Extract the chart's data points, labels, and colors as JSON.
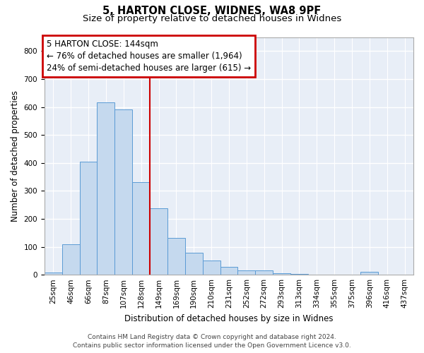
{
  "title1": "5, HARTON CLOSE, WIDNES, WA8 9PF",
  "title2": "Size of property relative to detached houses in Widnes",
  "xlabel": "Distribution of detached houses by size in Widnes",
  "ylabel": "Number of detached properties",
  "categories": [
    "25sqm",
    "46sqm",
    "66sqm",
    "87sqm",
    "107sqm",
    "128sqm",
    "149sqm",
    "169sqm",
    "190sqm",
    "210sqm",
    "231sqm",
    "252sqm",
    "272sqm",
    "293sqm",
    "313sqm",
    "334sqm",
    "355sqm",
    "375sqm",
    "396sqm",
    "416sqm",
    "437sqm"
  ],
  "values": [
    8,
    108,
    405,
    617,
    592,
    330,
    238,
    132,
    78,
    52,
    27,
    15,
    15,
    5,
    2,
    0,
    0,
    0,
    10,
    0,
    0
  ],
  "bar_color": "#c5d9ee",
  "bar_edge_color": "#5b9bd5",
  "background_color": "#e8eef7",
  "grid_color": "#ffffff",
  "vline_index": 6,
  "vline_color": "#cc0000",
  "annotation_line1": "5 HARTON CLOSE: 144sqm",
  "annotation_line2": "← 76% of detached houses are smaller (1,964)",
  "annotation_line3": "24% of semi-detached houses are larger (615) →",
  "annotation_box_color": "#cc0000",
  "ylim": [
    0,
    850
  ],
  "yticks": [
    0,
    100,
    200,
    300,
    400,
    500,
    600,
    700,
    800
  ],
  "title1_fontsize": 10.5,
  "title2_fontsize": 9.5,
  "tick_fontsize": 7.5,
  "ylabel_fontsize": 8.5,
  "xlabel_fontsize": 8.5,
  "annotation_fontsize": 8.5,
  "footer_line1": "Contains HM Land Registry data © Crown copyright and database right 2024.",
  "footer_line2": "Contains public sector information licensed under the Open Government Licence v3.0.",
  "footer_fontsize": 6.5
}
